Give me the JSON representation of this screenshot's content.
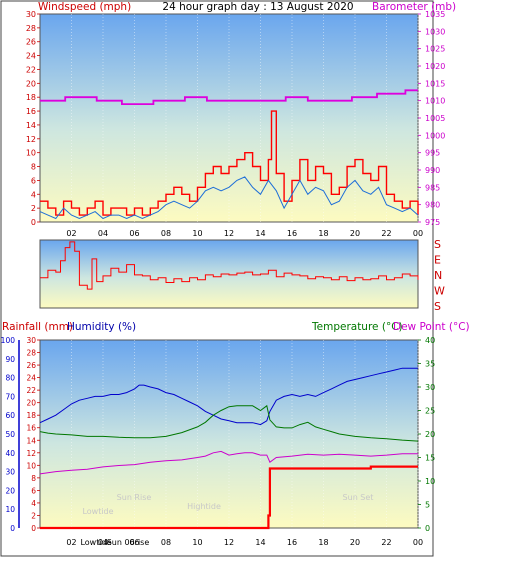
{
  "header": {
    "left_label": "Windspeed (mph)",
    "title": "24 hour graph day : 13 August 2020",
    "right_label": "Barometer (mb)"
  },
  "lower_header": {
    "rainfall_label": "Rainfall (mm)",
    "humidity_label": "Humidity (%)",
    "temperature_label": "Temperature (°C)",
    "dewpoint_label": "Dew Point (°C)"
  },
  "direction_labels": [
    "S",
    "E",
    "N",
    "W",
    "S"
  ],
  "colors": {
    "wind": "#ff0000",
    "gust_line": "#1e6fd8",
    "barometer": "#dd00dd",
    "rain": "#ff0000",
    "humidity": "#0000cc",
    "temperature": "#007700",
    "dewpoint": "#cc00cc",
    "sky_top": "#6aa6ee",
    "sky_bottom": "#fdfbc0"
  },
  "chart_data": [
    {
      "type": "line",
      "name_key": "wind_barometer",
      "x_ticks": [
        "02",
        "04",
        "06",
        "08",
        "10",
        "12",
        "14",
        "16",
        "18",
        "20",
        "22",
        "00"
      ],
      "y_left_ticks": [
        "0",
        "2",
        "4",
        "6",
        "8",
        "10",
        "12",
        "14",
        "16",
        "18",
        "20",
        "22",
        "24",
        "26",
        "28",
        "30"
      ],
      "y_right_ticks": [
        "975",
        "980",
        "985",
        "990",
        "995",
        "1000",
        "1005",
        "1010",
        "1015",
        "1020",
        "1025",
        "1030",
        "1035"
      ],
      "ylim_left": [
        0,
        30
      ],
      "ylim_right": [
        975,
        1035
      ],
      "xlim": [
        0,
        24
      ],
      "series": [
        {
          "x": [
            0,
            0.5,
            1,
            1.5,
            2,
            2.5,
            3,
            3.5,
            4,
            4.5,
            5,
            5.5,
            6,
            6.5,
            7,
            7.5,
            8,
            8.5,
            9,
            9.5,
            10,
            10.5,
            11,
            11.5,
            12,
            12.5,
            13,
            13.5,
            14,
            14.5,
            14.7,
            15,
            15.5,
            16,
            16.5,
            17,
            17.5,
            18,
            18.5,
            19,
            19.5,
            20,
            20.5,
            21,
            21.5,
            22,
            22.5,
            23,
            23.5,
            24
          ],
          "values": [
            3,
            2,
            1,
            3,
            2,
            1,
            2,
            3,
            1,
            2,
            2,
            1,
            2,
            1,
            2,
            3,
            4,
            5,
            4,
            3,
            5,
            7,
            8,
            7,
            8,
            9,
            10,
            8,
            6,
            9,
            16,
            7,
            3,
            6,
            9,
            6,
            8,
            7,
            4,
            5,
            8,
            9,
            7,
            6,
            8,
            4,
            3,
            2,
            3,
            1
          ]
        },
        {
          "x": [
            0,
            0.5,
            1,
            1.5,
            2,
            2.5,
            3,
            3.5,
            4,
            4.5,
            5,
            5.5,
            6,
            6.5,
            7,
            7.5,
            8,
            8.5,
            9,
            9.5,
            10,
            10.5,
            11,
            11.5,
            12,
            12.5,
            13,
            13.5,
            14,
            14.5,
            15,
            15.5,
            16,
            16.5,
            17,
            17.5,
            18,
            18.5,
            19,
            19.5,
            20,
            20.5,
            21,
            21.5,
            22,
            22.5,
            23,
            23.5,
            24
          ],
          "values": [
            1.5,
            1,
            0.5,
            2,
            1,
            0.5,
            1,
            1.5,
            0.5,
            1,
            1,
            0.5,
            1,
            0.5,
            1,
            1.5,
            2.5,
            3,
            2.5,
            2,
            3,
            4.5,
            5,
            4.5,
            5,
            6,
            6.5,
            5,
            4,
            6,
            4.5,
            2,
            4,
            6,
            4,
            5,
            4.5,
            2.5,
            3,
            5,
            6,
            4.5,
            4,
            5,
            2.5,
            2,
            1.5,
            2,
            1
          ]
        },
        {
          "x": [
            0,
            1.2,
            1.6,
            3.2,
            3.6,
            4.8,
            5.2,
            6.8,
            7.2,
            8.8,
            9.2,
            10.2,
            10.6,
            12.4,
            12.8,
            15.2,
            15.6,
            16.6,
            17.0,
            19.4,
            19.8,
            21.0,
            21.4,
            22.8,
            23.2,
            24
          ],
          "values": [
            1010,
            1010,
            1011,
            1011,
            1010,
            1010,
            1009,
            1009,
            1010,
            1010,
            1011,
            1011,
            1010,
            1010,
            1010,
            1010,
            1011,
            1011,
            1010,
            1010,
            1011,
            1011,
            1012,
            1012,
            1013,
            1013
          ]
        }
      ]
    },
    {
      "type": "line",
      "name_key": "wind_direction",
      "x_ticks": [],
      "y_labels": [
        "S",
        "E",
        "N",
        "W",
        "S"
      ],
      "ylim": [
        0,
        360
      ],
      "xlim": [
        0,
        24
      ],
      "series": [
        {
          "x": [
            0,
            0.5,
            1,
            1.3,
            1.6,
            1.9,
            2.2,
            2.5,
            3,
            3.3,
            3.6,
            4,
            4.5,
            5,
            5.5,
            6,
            6.5,
            7,
            7.5,
            8,
            8.5,
            9,
            9.5,
            10,
            10.5,
            11,
            11.5,
            12,
            12.5,
            13,
            13.5,
            14,
            14.5,
            15,
            15.5,
            16,
            16.5,
            17,
            17.5,
            18,
            18.5,
            19,
            19.5,
            20,
            20.5,
            21,
            21.5,
            22,
            22.5,
            23,
            23.5,
            24
          ],
          "values": [
            160,
            200,
            190,
            250,
            320,
            350,
            300,
            120,
            100,
            260,
            140,
            170,
            210,
            190,
            230,
            175,
            170,
            150,
            160,
            135,
            155,
            140,
            160,
            150,
            175,
            165,
            180,
            175,
            185,
            190,
            175,
            180,
            200,
            165,
            185,
            175,
            170,
            155,
            165,
            160,
            150,
            165,
            145,
            160,
            150,
            155,
            170,
            150,
            160,
            180,
            170,
            150
          ]
        }
      ]
    },
    {
      "type": "line",
      "name_key": "rain_humidity_temperature",
      "x_ticks": [
        "02",
        "04",
        "06",
        "08",
        "10",
        "12",
        "14",
        "16",
        "18",
        "20",
        "22",
        "00"
      ],
      "y_humidity_ticks": [
        "0",
        "10",
        "20",
        "30",
        "40",
        "50",
        "60",
        "70",
        "80",
        "90",
        "100"
      ],
      "y_rain_ticks": [
        "0",
        "2",
        "4",
        "6",
        "8",
        "10",
        "12",
        "14",
        "16",
        "18",
        "20",
        "22",
        "24",
        "26",
        "28",
        "30"
      ],
      "y_temp_ticks": [
        "0",
        "5",
        "10",
        "15",
        "20",
        "25",
        "30",
        "35",
        "40"
      ],
      "ylim_humidity": [
        0,
        100
      ],
      "ylim_rain": [
        0,
        30
      ],
      "ylim_temp": [
        0,
        40
      ],
      "xlim": [
        0,
        24
      ],
      "annotations": [
        "Lowtide",
        "Sun Rise",
        "Hightide",
        "Sun Set"
      ],
      "bottom_labels": [
        "02",
        "Lowtide",
        "04",
        "Sun 06rise"
      ],
      "series": [
        {
          "name_key": "rain",
          "x": [
            0,
            14.3,
            14.5,
            14.6,
            15,
            18,
            21,
            24
          ],
          "values": [
            0,
            0,
            2,
            9.5,
            9.5,
            9.5,
            9.8,
            9.8
          ]
        },
        {
          "name_key": "humidity",
          "x": [
            0,
            0.5,
            1,
            1.5,
            2,
            2.5,
            3,
            3.5,
            4,
            4.5,
            5,
            5.5,
            6,
            6.3,
            6.6,
            7,
            7.5,
            8,
            8.5,
            9,
            9.5,
            10,
            10.5,
            11,
            11.5,
            12,
            12.5,
            13,
            13.5,
            14,
            14.4,
            14.6,
            15,
            15.5,
            16,
            16.5,
            17,
            17.5,
            18,
            18.5,
            19,
            19.5,
            20,
            20.5,
            21,
            21.5,
            22,
            22.5,
            23,
            23.5,
            24
          ],
          "values": [
            56,
            58,
            60,
            63,
            66,
            68,
            69,
            70,
            70,
            71,
            71,
            72,
            74,
            76,
            76,
            75,
            74,
            72,
            71,
            69,
            67,
            65,
            62,
            60,
            58,
            57,
            56,
            56,
            56,
            55,
            57,
            62,
            68,
            70,
            71,
            70,
            71,
            70,
            72,
            74,
            76,
            78,
            79,
            80,
            81,
            82,
            83,
            84,
            85,
            85,
            85
          ]
        },
        {
          "name_key": "temperature",
          "x": [
            0,
            0.5,
            1,
            2,
            3,
            4,
            5,
            6,
            7,
            8,
            9,
            10,
            10.5,
            11,
            11.5,
            12,
            12.5,
            13,
            13.5,
            14,
            14.4,
            14.6,
            15,
            15.5,
            16,
            16.5,
            17,
            17.5,
            18,
            18.5,
            19,
            20,
            21,
            22,
            23,
            24
          ],
          "values": [
            20.5,
            20.2,
            20,
            19.8,
            19.5,
            19.5,
            19.3,
            19.2,
            19.2,
            19.5,
            20.3,
            21.5,
            22.5,
            24,
            25,
            25.8,
            26,
            26,
            26,
            25,
            26,
            23,
            21.5,
            21.3,
            21.3,
            22,
            22.5,
            21.5,
            21,
            20.5,
            20,
            19.5,
            19.2,
            19,
            18.7,
            18.5
          ]
        },
        {
          "name_key": "dewpoint",
          "x": [
            0,
            1,
            2,
            3,
            4,
            5,
            6,
            7,
            8,
            9,
            10,
            10.5,
            11,
            11.5,
            12,
            12.5,
            13,
            13.5,
            14,
            14.4,
            14.6,
            15,
            16,
            17,
            18,
            19,
            20,
            21,
            22,
            23,
            24
          ],
          "values": [
            11.5,
            12,
            12.3,
            12.5,
            13,
            13.3,
            13.5,
            14,
            14.3,
            14.5,
            15,
            15.3,
            16,
            16.3,
            15.5,
            15.8,
            16,
            16,
            15.5,
            15.5,
            14,
            15,
            15.3,
            15.7,
            15.5,
            15.7,
            15.5,
            15.3,
            15.5,
            15.8,
            15.8
          ]
        }
      ]
    }
  ]
}
